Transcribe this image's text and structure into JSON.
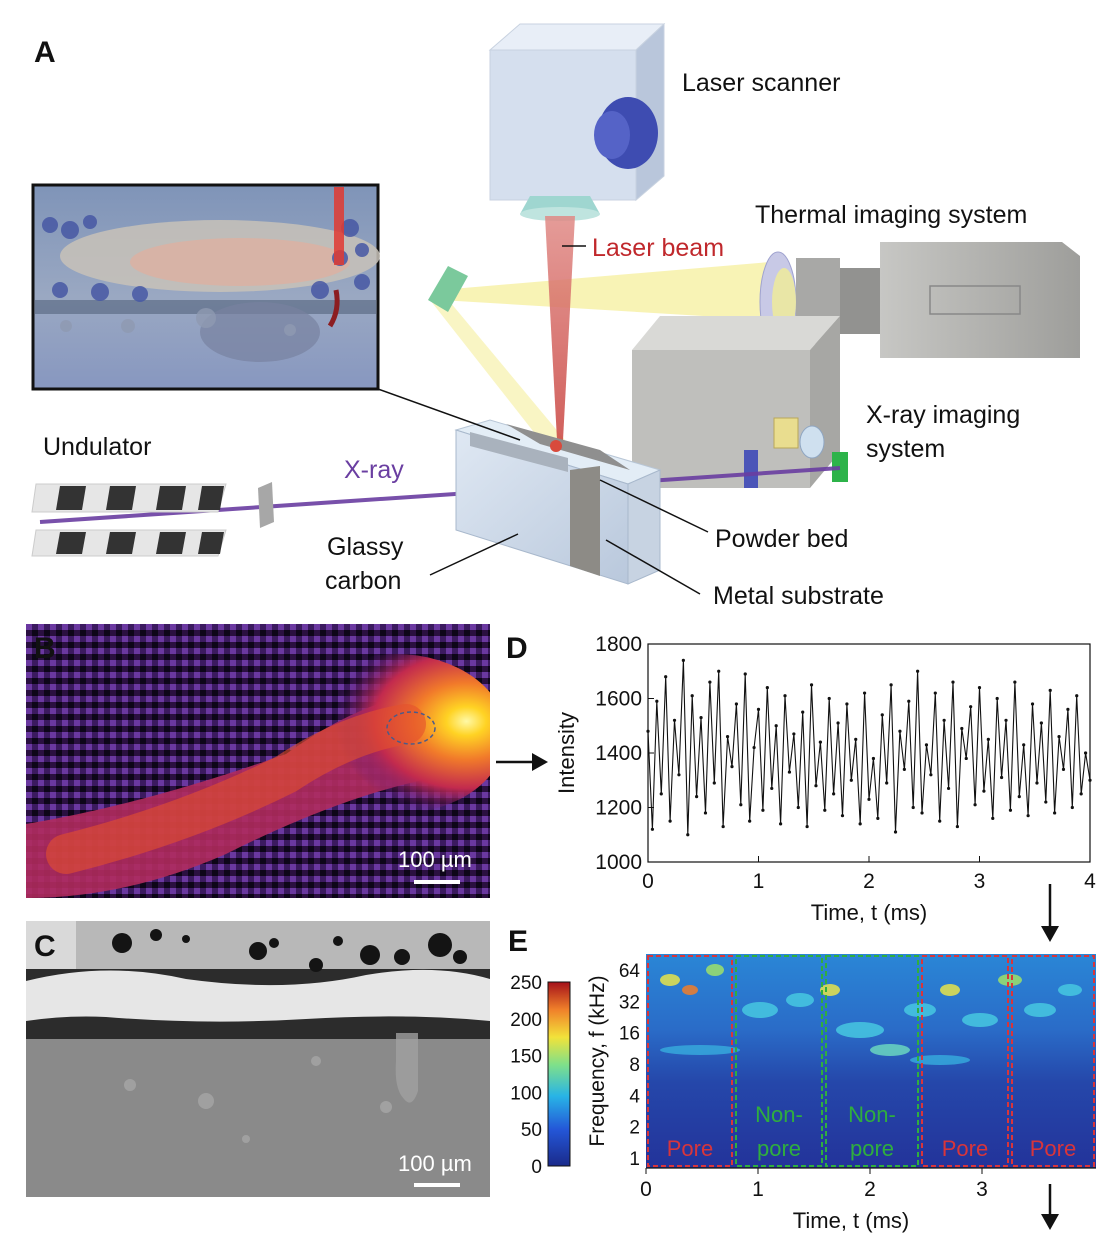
{
  "panels": {
    "a": {
      "letter": "A",
      "labels": {
        "laser_scanner": "Laser scanner",
        "laser_beam": "Laser beam",
        "thermal": "Thermal imaging system",
        "xray_imaging_1": "X-ray imaging",
        "xray_imaging_2": "system",
        "undulator": "Undulator",
        "xray": "X-ray",
        "glassy_1": "Glassy",
        "glassy_2": "carbon",
        "powder_bed": "Powder bed",
        "metal_substrate": "Metal substrate"
      }
    },
    "b": {
      "letter": "B",
      "scalebar": "100 µm"
    },
    "c": {
      "letter": "C",
      "scalebar": "100 µm"
    },
    "d": {
      "letter": "D"
    },
    "e": {
      "letter": "E",
      "colorbar_ticks": [
        "250",
        "200",
        "150",
        "100",
        "50",
        "0"
      ],
      "segments": [
        {
          "label_1": "Pore",
          "label_2": "",
          "color": "#d8353b"
        },
        {
          "label_1": "Non-",
          "label_2": "pore",
          "color": "#2fae3e"
        },
        {
          "label_1": "Non-",
          "label_2": "pore",
          "color": "#2fae3e"
        },
        {
          "label_1": "Pore",
          "label_2": "",
          "color": "#d8353b"
        },
        {
          "label_1": "Pore",
          "label_2": "",
          "color": "#d8353b"
        }
      ]
    }
  },
  "chart_data": [
    {
      "type": "line",
      "panel": "D",
      "xlabel": "Time, t (ms)",
      "ylabel": "Intensity",
      "xlim": [
        0,
        4
      ],
      "ylim": [
        1000,
        1800
      ],
      "xticks": [
        "0",
        "1",
        "2",
        "3",
        "4"
      ],
      "yticks": [
        "1000",
        "1200",
        "1400",
        "1600",
        "1800"
      ],
      "series": [
        {
          "x": [
            0,
            0.04,
            0.08,
            0.12,
            0.16,
            0.2,
            0.24,
            0.28,
            0.32,
            0.36,
            0.4,
            0.44,
            0.48,
            0.52,
            0.56,
            0.6,
            0.64,
            0.68,
            0.72,
            0.76,
            0.8,
            0.84,
            0.88,
            0.92,
            0.96,
            1.0,
            1.04,
            1.08,
            1.12,
            1.16,
            1.2,
            1.24,
            1.28,
            1.32,
            1.36,
            1.4,
            1.44,
            1.48,
            1.52,
            1.56,
            1.6,
            1.64,
            1.68,
            1.72,
            1.76,
            1.8,
            1.84,
            1.88,
            1.92,
            1.96,
            2.0,
            2.04,
            2.08,
            2.12,
            2.16,
            2.2,
            2.24,
            2.28,
            2.32,
            2.36,
            2.4,
            2.44,
            2.48,
            2.52,
            2.56,
            2.6,
            2.64,
            2.68,
            2.72,
            2.76,
            2.8,
            2.84,
            2.88,
            2.92,
            2.96,
            3.0,
            3.04,
            3.08,
            3.12,
            3.16,
            3.2,
            3.24,
            3.28,
            3.32,
            3.36,
            3.4,
            3.44,
            3.48,
            3.52,
            3.56,
            3.6,
            3.64,
            3.68,
            3.72,
            3.76,
            3.8,
            3.84,
            3.88,
            3.92,
            3.96,
            4.0
          ],
          "y": [
            1480,
            1120,
            1590,
            1250,
            1680,
            1150,
            1520,
            1320,
            1740,
            1100,
            1610,
            1240,
            1530,
            1180,
            1660,
            1290,
            1700,
            1130,
            1460,
            1350,
            1580,
            1210,
            1690,
            1150,
            1420,
            1560,
            1190,
            1640,
            1270,
            1500,
            1140,
            1610,
            1330,
            1470,
            1200,
            1550,
            1130,
            1650,
            1280,
            1440,
            1190,
            1600,
            1250,
            1510,
            1170,
            1580,
            1300,
            1450,
            1140,
            1620,
            1230,
            1380,
            1160,
            1540,
            1290,
            1650,
            1110,
            1480,
            1340,
            1590,
            1200,
            1700,
            1180,
            1430,
            1320,
            1620,
            1150,
            1520,
            1270,
            1660,
            1130,
            1490,
            1380,
            1570,
            1210,
            1640,
            1260,
            1450,
            1160,
            1600,
            1310,
            1520,
            1190,
            1660,
            1240,
            1430,
            1170,
            1580,
            1290,
            1510,
            1220,
            1630,
            1180,
            1460,
            1340,
            1560,
            1200,
            1610,
            1250,
            1400,
            1300
          ]
        }
      ]
    },
    {
      "type": "heatmap",
      "panel": "E",
      "xlabel": "Time, t (ms)",
      "ylabel": "Frequency, f (kHz)",
      "xticks": [
        "0",
        "1",
        "2",
        "3"
      ],
      "yticks": [
        "64",
        "32",
        "16",
        "8",
        "4",
        "2",
        "1"
      ]
    }
  ]
}
